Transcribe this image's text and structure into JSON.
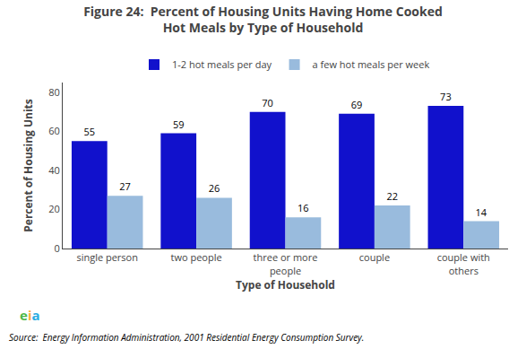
{
  "chart_data": {
    "type": "bar",
    "title": "Figure 24:  Percent of Housing Units Having Home Cooked\nHot Meals by Type of Household",
    "categories": [
      "single person",
      "two people",
      "three or more\npeople",
      "couple",
      "couple with\nothers"
    ],
    "series": [
      {
        "name": "1-2 hot meals per day",
        "color": "#1111CC",
        "values": [
          55,
          59,
          70,
          69,
          73
        ]
      },
      {
        "name": "a few hot meals per week",
        "color": "#99BBDD",
        "values": [
          27,
          26,
          16,
          22,
          14
        ]
      }
    ],
    "xlabel": "Type of Household",
    "ylabel": "Percent of Housing Units",
    "ylim": [
      0,
      85
    ],
    "yticks": [
      0,
      20,
      40,
      60,
      80
    ],
    "data_labels": true,
    "grid": false,
    "legend": "top",
    "annotations": [
      {
        "text": "eia",
        "colors": [
          "#4db848",
          "#fbb040",
          "#29abe2"
        ]
      },
      {
        "text": "Source:  Energy Information Administration, 2001 Residential Energy Consumption Survey."
      }
    ]
  }
}
